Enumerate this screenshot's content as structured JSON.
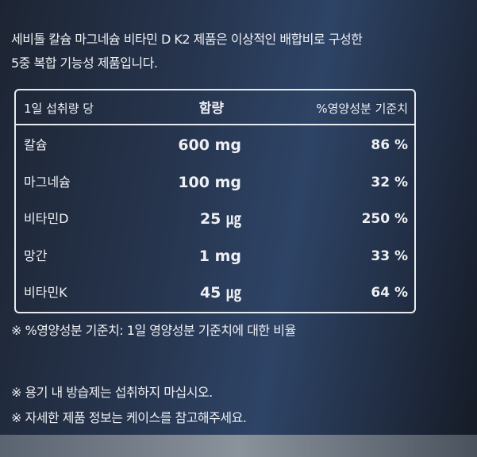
{
  "intro": [
    "세비톨 칼슘 마그네슘 비타민 D K2 제품은 이상적인 배합비로 구성한",
    "5중 복합 기능성 제품입니다."
  ],
  "table": {
    "header": [
      "1일 섭취량 당",
      "함량",
      "%영양성분 기준치"
    ],
    "rows": [
      [
        "칼슘",
        "600 mg",
        "86 %"
      ],
      [
        "마그네슘",
        "100 mg",
        "32 %"
      ],
      [
        "비타민D",
        "25 ㎍",
        "250 %"
      ],
      [
        "망간",
        "1 mg",
        "33 %"
      ],
      [
        "비타민K",
        "45 ㎍",
        "64 %"
      ]
    ]
  },
  "footnote": "※ %영양성분 기준치: 1일 영양성분 기준치에 대한 비율",
  "notes": [
    "※ 용기 내 방습제는 섭취하지 마십시오.",
    "※ 자세한 제품 정보는 케이스를 참고해주세요."
  ]
}
